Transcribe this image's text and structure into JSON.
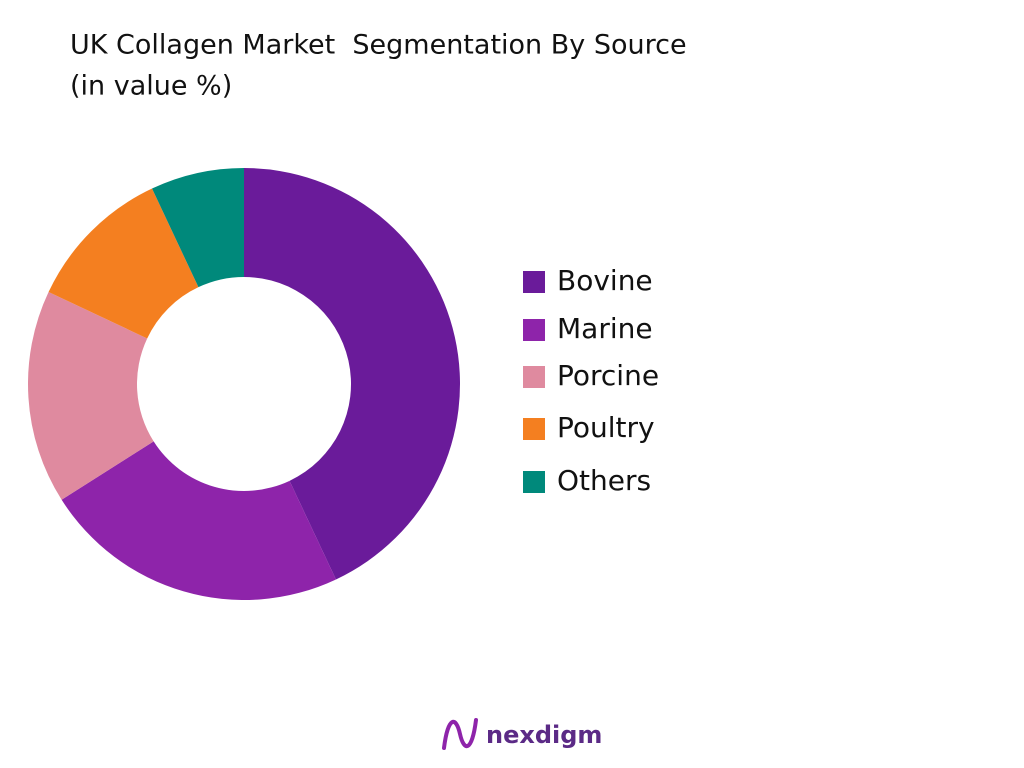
{
  "chart_data": {
    "type": "donut",
    "title": "UK Collagen Market  Segmentation By Source",
    "subtitle": "(in value %)",
    "categories": [
      "Bovine",
      "Marine",
      "Porcine",
      "Poultry",
      "Others"
    ],
    "values": [
      43,
      23,
      16,
      11,
      7
    ],
    "colors": [
      "#6a1b9a",
      "#8e24aa",
      "#df8a9f",
      "#f47f20",
      "#00897b"
    ],
    "legend": "right"
  },
  "brand": "nexdigm"
}
